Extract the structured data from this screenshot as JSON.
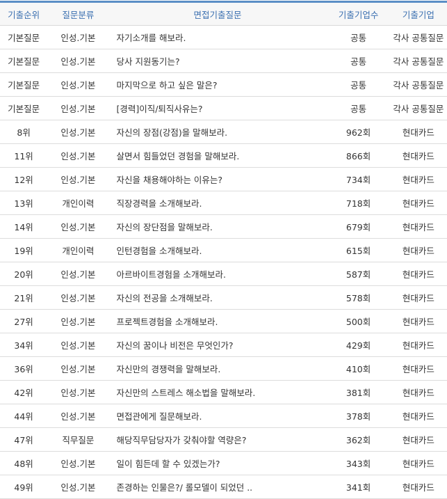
{
  "header": {
    "rank": "기출순위",
    "category": "질문분류",
    "question": "면접기출질문",
    "count": "기출기업수",
    "company": "기출기업"
  },
  "rows": [
    {
      "rank": "기본질문",
      "category": "인성.기본",
      "question": "자기소개를 해보라.",
      "count": "공통",
      "company": "각사 공통질문"
    },
    {
      "rank": "기본질문",
      "category": "인성.기본",
      "question": "당사 지원동기는?",
      "count": "공통",
      "company": "각사 공통질문"
    },
    {
      "rank": "기본질문",
      "category": "인성.기본",
      "question": "마지막으로 하고 싶은 말은?",
      "count": "공통",
      "company": "각사 공통질문"
    },
    {
      "rank": "기본질문",
      "category": "인성.기본",
      "question": "[경력]이직/퇴직사유는?",
      "count": "공통",
      "company": "각사 공통질문"
    },
    {
      "rank": "8위",
      "category": "인성.기본",
      "question": "자신의 장점(강점)을 말해보라.",
      "count": "962회",
      "company": "현대카드"
    },
    {
      "rank": "11위",
      "category": "인성.기본",
      "question": "살면서 힘들었던 경험을 말해보라.",
      "count": "866회",
      "company": "현대카드"
    },
    {
      "rank": "12위",
      "category": "인성.기본",
      "question": "자신을 채용해야하는 이유는?",
      "count": "734회",
      "company": "현대카드"
    },
    {
      "rank": "13위",
      "category": "개인이력",
      "question": "직장경력을 소개해보라.",
      "count": "718회",
      "company": "현대카드"
    },
    {
      "rank": "14위",
      "category": "인성.기본",
      "question": "자신의 장단점을 말해보라.",
      "count": "679회",
      "company": "현대카드"
    },
    {
      "rank": "19위",
      "category": "개인이력",
      "question": "인턴경험을 소개해보라.",
      "count": "615회",
      "company": "현대카드"
    },
    {
      "rank": "20위",
      "category": "인성.기본",
      "question": "아르바이트경험을 소개해보라.",
      "count": "587회",
      "company": "현대카드"
    },
    {
      "rank": "21위",
      "category": "인성.기본",
      "question": "자신의 전공을 소개해보라.",
      "count": "578회",
      "company": "현대카드"
    },
    {
      "rank": "27위",
      "category": "인성.기본",
      "question": "프로젝트경험을 소개해보라.",
      "count": "500회",
      "company": "현대카드"
    },
    {
      "rank": "34위",
      "category": "인성.기본",
      "question": "자신의 꿈이나 비전은 무엇인가?",
      "count": "429회",
      "company": "현대카드"
    },
    {
      "rank": "36위",
      "category": "인성.기본",
      "question": "자신만의 경쟁력을 말해보라.",
      "count": "410회",
      "company": "현대카드"
    },
    {
      "rank": "42위",
      "category": "인성.기본",
      "question": "자신만의 스트레스 해소법을 말해보라.",
      "count": "381회",
      "company": "현대카드"
    },
    {
      "rank": "44위",
      "category": "인성.기본",
      "question": "면접관에게 질문해보라.",
      "count": "378회",
      "company": "현대카드"
    },
    {
      "rank": "47위",
      "category": "직무질문",
      "question": "해당직무담당자가 갖춰야할 역량은?",
      "count": "362회",
      "company": "현대카드"
    },
    {
      "rank": "48위",
      "category": "인성.기본",
      "question": "일이 힘든데 할 수 있겠는가?",
      "count": "343회",
      "company": "현대카드"
    },
    {
      "rank": "49위",
      "category": "인성.기본",
      "question": "존경하는 인물은?/ 롤모델이 되었던 ..",
      "count": "341회",
      "company": "현대카드"
    }
  ]
}
